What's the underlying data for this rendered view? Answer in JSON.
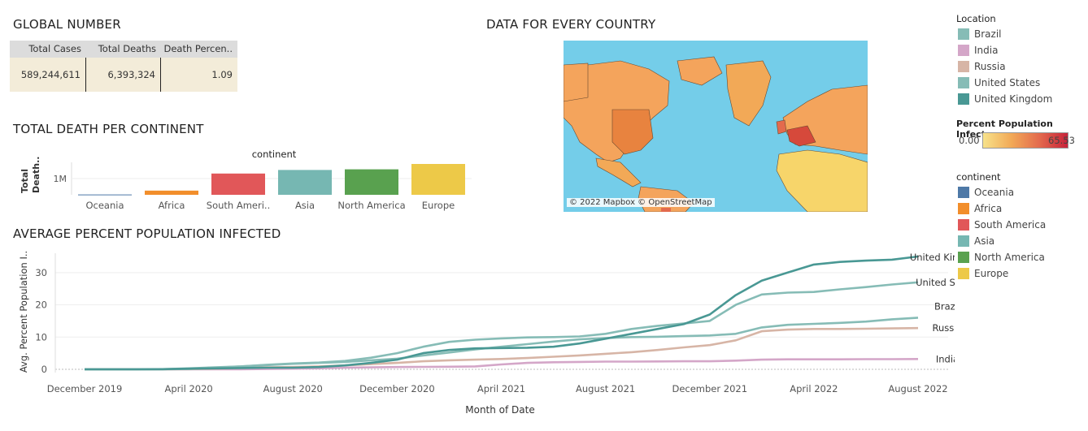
{
  "global": {
    "title": "GLOBAL NUMBER",
    "headers": [
      "Total Cases",
      "Total Deaths",
      "Death Percen.."
    ],
    "values": [
      "589,244,611",
      "6,393,324",
      "1.09"
    ]
  },
  "map": {
    "title": "DATA FOR EVERY COUNTRY",
    "attribution": "© 2022 Mapbox © OpenStreetMap",
    "ocean_color": "#74cde9"
  },
  "location_legend": {
    "title": "Location",
    "items": [
      {
        "name": "Brazil",
        "color": "#86bcb6"
      },
      {
        "name": "India",
        "color": "#d4a6c8"
      },
      {
        "name": "Russia",
        "color": "#d7b5a6"
      },
      {
        "name": "United States",
        "color": "#86bcb6"
      },
      {
        "name": "United Kingdom",
        "color": "#499894"
      }
    ]
  },
  "infect_legend": {
    "title": "Percent Population Infect..",
    "min": "0.00",
    "max": "65.53"
  },
  "continent_legend": {
    "title": "continent",
    "items": [
      {
        "name": "Oceania",
        "color": "#4e79a7"
      },
      {
        "name": "Africa",
        "color": "#f28e2b"
      },
      {
        "name": "South America",
        "color": "#e15759"
      },
      {
        "name": "Asia",
        "color": "#76b7b2"
      },
      {
        "name": "North America",
        "color": "#59a14f"
      },
      {
        "name": "Europe",
        "color": "#edc948"
      }
    ]
  },
  "chart_data": [
    {
      "type": "bar",
      "title": "TOTAL DEATH PER CONTINENT",
      "header": "continent",
      "ylabel": "Total Death..",
      "yticks": [
        {
          "value": 1000000,
          "label": "1M"
        }
      ],
      "ylim": [
        0,
        2100000
      ],
      "categories": [
        "Oceania",
        "Africa",
        "South Ameri..",
        "Asia",
        "North America",
        "Europe"
      ],
      "values": [
        20000,
        258000,
        1310000,
        1530000,
        1570000,
        1900000
      ],
      "colors": [
        "#4e79a7",
        "#f28e2b",
        "#e15759",
        "#76b7b2",
        "#59a14f",
        "#edc948"
      ]
    },
    {
      "type": "line",
      "title": "AVERAGE PERCENT POPULATION INFECTED",
      "xlabel": "Month of Date",
      "ylabel": "Avg. Percent Population I..",
      "ylim": [
        0,
        36
      ],
      "yticks": [
        0,
        10,
        20,
        30
      ],
      "x": [
        "2019-12",
        "2020-01",
        "2020-02",
        "2020-03",
        "2020-04",
        "2020-05",
        "2020-06",
        "2020-07",
        "2020-08",
        "2020-09",
        "2020-10",
        "2020-11",
        "2020-12",
        "2021-01",
        "2021-02",
        "2021-03",
        "2021-04",
        "2021-05",
        "2021-06",
        "2021-07",
        "2021-08",
        "2021-09",
        "2021-10",
        "2021-11",
        "2021-12",
        "2022-01",
        "2022-02",
        "2022-03",
        "2022-04",
        "2022-05",
        "2022-06",
        "2022-07",
        "2022-08"
      ],
      "xticks": [
        {
          "index": 0,
          "label": "December 2019"
        },
        {
          "index": 4,
          "label": "April 2020"
        },
        {
          "index": 8,
          "label": "August 2020"
        },
        {
          "index": 12,
          "label": "December 2020"
        },
        {
          "index": 16,
          "label": "April 2021"
        },
        {
          "index": 20,
          "label": "August 2021"
        },
        {
          "index": 24,
          "label": "December 2021"
        },
        {
          "index": 28,
          "label": "April 2022"
        },
        {
          "index": 32,
          "label": "August 2022"
        }
      ],
      "series": [
        {
          "name": "United Kingdom",
          "color": "#499894",
          "values": [
            0,
            0,
            0,
            0.05,
            0.2,
            0.3,
            0.4,
            0.5,
            0.5,
            0.7,
            1.2,
            2.0,
            3.0,
            5.0,
            6.0,
            6.5,
            6.6,
            6.7,
            7.0,
            8.0,
            9.5,
            11.0,
            12.5,
            14.0,
            17.0,
            23.0,
            27.5,
            30.0,
            32.5,
            33.3,
            33.7,
            34.0,
            35.0
          ]
        },
        {
          "name": "United States",
          "color": "#86bcb6",
          "values": [
            0,
            0,
            0,
            0.05,
            0.3,
            0.6,
            0.9,
            1.4,
            1.8,
            2.1,
            2.6,
            3.6,
            5.0,
            7.0,
            8.5,
            9.2,
            9.6,
            9.9,
            10.0,
            10.2,
            11.0,
            12.5,
            13.5,
            14.2,
            15.0,
            20.0,
            23.2,
            23.8,
            24.0,
            24.8,
            25.5,
            26.3,
            27.0
          ]
        },
        {
          "name": "Brazil",
          "color": "#86bcb6",
          "values": [
            0,
            0,
            0,
            0,
            0.1,
            0.5,
            0.9,
            1.3,
            1.7,
            2.0,
            2.3,
            2.8,
            3.3,
            4.3,
            5.2,
            6.2,
            7.0,
            7.8,
            8.6,
            9.3,
            9.7,
            10.0,
            10.1,
            10.3,
            10.5,
            11.0,
            13.0,
            13.8,
            14.1,
            14.4,
            14.8,
            15.5,
            16.0
          ]
        },
        {
          "name": "Russia",
          "color": "#d7b5a6",
          "values": [
            0,
            0,
            0,
            0,
            0.05,
            0.2,
            0.4,
            0.6,
            0.7,
            0.9,
            1.2,
            1.6,
            2.0,
            2.5,
            2.8,
            3.0,
            3.2,
            3.5,
            3.9,
            4.3,
            4.8,
            5.3,
            6.0,
            6.8,
            7.5,
            9.0,
            11.8,
            12.3,
            12.5,
            12.5,
            12.6,
            12.7,
            12.8
          ]
        },
        {
          "name": "India",
          "color": "#d4a6c8",
          "values": [
            0,
            0,
            0,
            0,
            0,
            0.01,
            0.03,
            0.1,
            0.2,
            0.3,
            0.5,
            0.6,
            0.7,
            0.75,
            0.8,
            0.9,
            1.5,
            2.0,
            2.2,
            2.3,
            2.4,
            2.4,
            2.45,
            2.5,
            2.5,
            2.7,
            3.0,
            3.1,
            3.1,
            3.1,
            3.15,
            3.15,
            3.2
          ]
        }
      ]
    }
  ]
}
